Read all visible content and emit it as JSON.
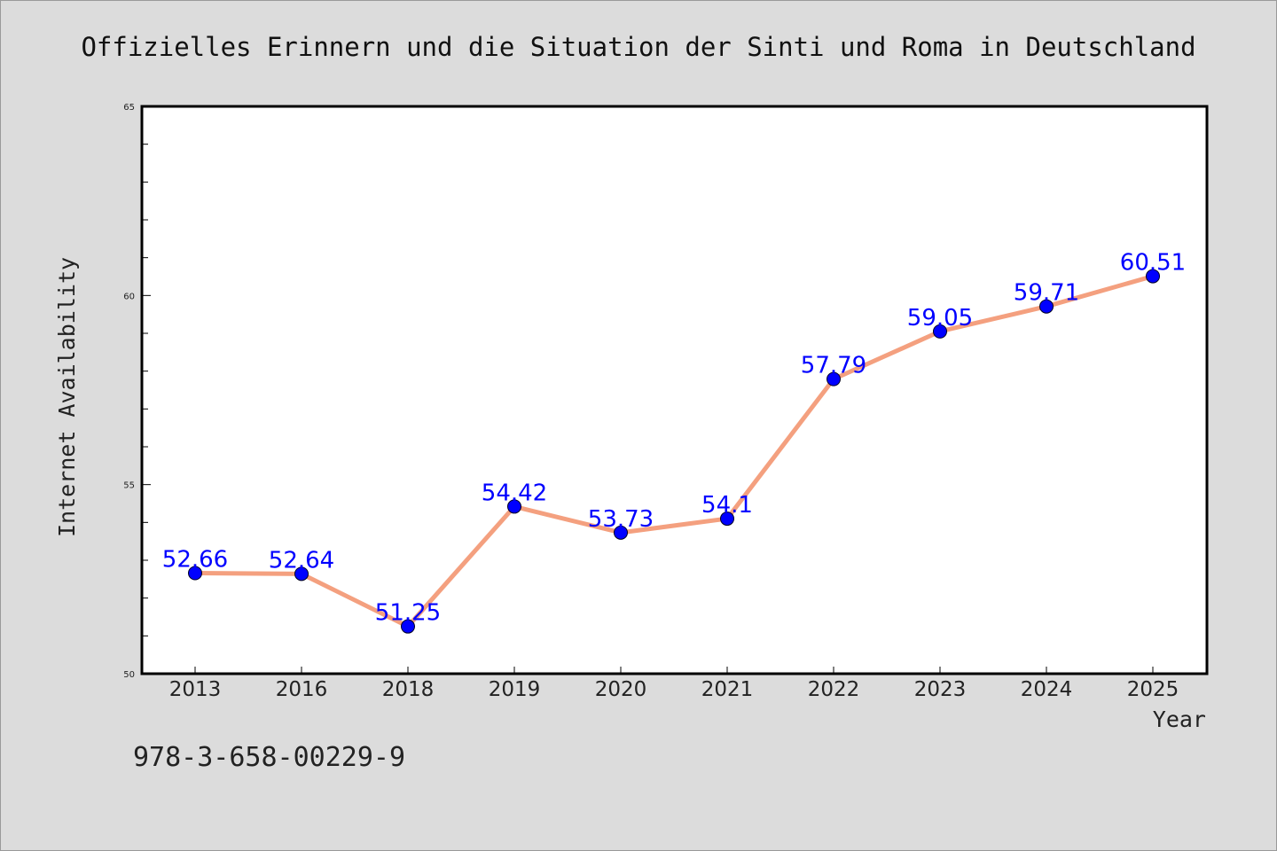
{
  "chart_data": {
    "type": "line",
    "title": "Offizielles Erinnern und die Situation der Sinti und Roma in Deutschland",
    "xlabel": "Year",
    "ylabel": "Internet Availability",
    "categories": [
      "2013",
      "2016",
      "2018",
      "2019",
      "2020",
      "2021",
      "2022",
      "2023",
      "2024",
      "2025"
    ],
    "values": [
      52.66,
      52.64,
      51.25,
      54.42,
      53.73,
      54.1,
      57.79,
      59.05,
      59.71,
      60.51
    ],
    "data_labels": [
      "52.66",
      "52.64",
      "51.25",
      "54.42",
      "53.73",
      "54.1",
      "57.79",
      "59.05",
      "59.71",
      "60.51"
    ],
    "ylim": [
      50,
      65
    ],
    "yticks": [
      "50",
      "55",
      "60",
      "65"
    ],
    "grid": false,
    "colors": {
      "line": "#f4a07f",
      "marker": "#0000ff",
      "label": "#0000ff"
    }
  },
  "footer": {
    "isbn": "978-3-658-00229-9"
  }
}
